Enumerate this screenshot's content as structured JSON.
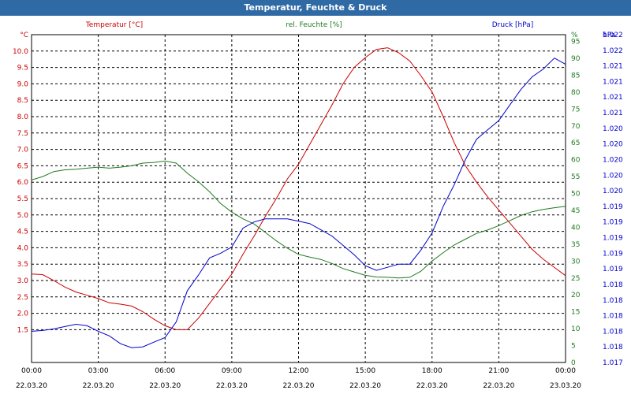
{
  "header": {
    "title": "Temperatur, Feuchte & Druck"
  },
  "colors": {
    "temperature": "#cc0000",
    "humidity": "#1f7a1f",
    "pressure": "#0000cc",
    "grid": "#000000",
    "title_bar": "#2f6aa5"
  },
  "chart_data": {
    "type": "line",
    "title": "Temperatur, Feuchte & Druck",
    "grid": true,
    "x_ticks": [
      {
        "time": "00:00",
        "date": "22.03.20"
      },
      {
        "time": "03:00",
        "date": "22.03.20"
      },
      {
        "time": "06:00",
        "date": "22.03.20"
      },
      {
        "time": "09:00",
        "date": "22.03.20"
      },
      {
        "time": "12:00",
        "date": "22.03.20"
      },
      {
        "time": "15:00",
        "date": "22.03.20"
      },
      {
        "time": "18:00",
        "date": "22.03.20"
      },
      {
        "time": "21:00",
        "date": "22.03.20"
      },
      {
        "time": "00:00",
        "date": "23.03.20"
      }
    ],
    "x_range_hours": [
      0,
      24
    ],
    "axes": {
      "temperature": {
        "unit_label": "°C",
        "legend": "Temperatur [°C]",
        "ylim": [
          0.5,
          10.5
        ],
        "ticks": [
          "1.5",
          "2.0",
          "2.5",
          "3.0",
          "3.5",
          "4.0",
          "4.5",
          "5.0",
          "5.5",
          "6.0",
          "6.5",
          "7.0",
          "7.5",
          "8.0",
          "8.5",
          "9.0",
          "9.5",
          "10.0"
        ]
      },
      "humidity": {
        "unit_label": "%",
        "legend": "rel. Feuchte [%]",
        "ylim": [
          0,
          97
        ],
        "ticks": [
          "0",
          "5",
          "10",
          "15",
          "20",
          "25",
          "30",
          "35",
          "40",
          "45",
          "50",
          "55",
          "60",
          "65",
          "70",
          "75",
          "80",
          "85",
          "90",
          "95",
          "%"
        ]
      },
      "pressure": {
        "unit_label": "hPa",
        "legend": "Druck [hPa]",
        "ylim": [
          0,
          20
        ],
        "ticks": [
          "1.017",
          "1.018",
          "1.018",
          "1.018",
          "1.018",
          "1.018",
          "1.019",
          "1.019",
          "1.019",
          "1.019",
          "1.019",
          "1.020",
          "1.020",
          "1.020",
          "1.020",
          "1.020",
          "1.021",
          "1.021",
          "1.021",
          "1.021",
          "1.022",
          "1.022"
        ],
        "note": "tick labels as printed; curve values are in tick-index units"
      }
    },
    "series": [
      {
        "name": "Temperatur [°C]",
        "axis": "temperature",
        "points": [
          [
            0,
            3.2
          ],
          [
            0.5,
            3.18
          ],
          [
            1,
            3.0
          ],
          [
            1.5,
            2.8
          ],
          [
            2,
            2.65
          ],
          [
            2.5,
            2.55
          ],
          [
            3,
            2.45
          ],
          [
            3.5,
            2.32
          ],
          [
            4,
            2.28
          ],
          [
            4.5,
            2.22
          ],
          [
            5,
            2.05
          ],
          [
            5.5,
            1.82
          ],
          [
            6,
            1.62
          ],
          [
            6.5,
            1.5
          ],
          [
            7,
            1.5
          ],
          [
            7.5,
            1.85
          ],
          [
            8,
            2.3
          ],
          [
            8.5,
            2.75
          ],
          [
            9,
            3.2
          ],
          [
            9.5,
            3.8
          ],
          [
            10,
            4.35
          ],
          [
            10.5,
            4.95
          ],
          [
            11,
            5.5
          ],
          [
            11.5,
            6.1
          ],
          [
            12,
            6.55
          ],
          [
            12.5,
            7.15
          ],
          [
            13,
            7.75
          ],
          [
            13.5,
            8.35
          ],
          [
            14,
            9.0
          ],
          [
            14.5,
            9.5
          ],
          [
            15,
            9.8
          ],
          [
            15.5,
            10.05
          ],
          [
            16,
            10.1
          ],
          [
            16.5,
            9.95
          ],
          [
            17,
            9.7
          ],
          [
            17.5,
            9.25
          ],
          [
            18,
            8.75
          ],
          [
            18.5,
            8.0
          ],
          [
            19,
            7.2
          ],
          [
            19.5,
            6.5
          ],
          [
            20,
            6.0
          ],
          [
            20.5,
            5.55
          ],
          [
            21,
            5.15
          ],
          [
            21.5,
            4.75
          ],
          [
            22,
            4.35
          ],
          [
            22.5,
            3.95
          ],
          [
            23,
            3.65
          ],
          [
            23.5,
            3.4
          ],
          [
            24,
            3.15
          ]
        ]
      },
      {
        "name": "rel. Feuchte [%]",
        "axis": "humidity",
        "points": [
          [
            0,
            54
          ],
          [
            0.5,
            55
          ],
          [
            1,
            56.5
          ],
          [
            1.5,
            57
          ],
          [
            2,
            57.2
          ],
          [
            2.5,
            57.5
          ],
          [
            3,
            57.8
          ],
          [
            3.5,
            57.5
          ],
          [
            4,
            57.8
          ],
          [
            4.5,
            58.2
          ],
          [
            5,
            59
          ],
          [
            5.5,
            59.2
          ],
          [
            6,
            59.6
          ],
          [
            6.5,
            59
          ],
          [
            7,
            56
          ],
          [
            7.5,
            53.5
          ],
          [
            8,
            50.5
          ],
          [
            8.5,
            47
          ],
          [
            9,
            44.5
          ],
          [
            9.5,
            42.5
          ],
          [
            10,
            41
          ],
          [
            10.5,
            38.5
          ],
          [
            11,
            36
          ],
          [
            11.5,
            33.8
          ],
          [
            12,
            32
          ],
          [
            12.5,
            31.2
          ],
          [
            13,
            30.5
          ],
          [
            13.5,
            29.3
          ],
          [
            14,
            27.8
          ],
          [
            14.5,
            26.8
          ],
          [
            15,
            25.8
          ],
          [
            15.5,
            25.3
          ],
          [
            16,
            25.2
          ],
          [
            16.5,
            25
          ],
          [
            17,
            25.2
          ],
          [
            17.5,
            27
          ],
          [
            18,
            30
          ],
          [
            18.5,
            32.5
          ],
          [
            19,
            34.8
          ],
          [
            19.5,
            36.5
          ],
          [
            20,
            38.2
          ],
          [
            20.5,
            39.2
          ],
          [
            21,
            40.5
          ],
          [
            21.5,
            42
          ],
          [
            22,
            43.5
          ],
          [
            22.5,
            44.6
          ],
          [
            23,
            45.3
          ],
          [
            23.5,
            45.8
          ],
          [
            24,
            46.2
          ]
        ]
      },
      {
        "name": "Druck [hPa]",
        "axis": "pressure",
        "points": [
          [
            0,
            2.0
          ],
          [
            0.5,
            2.05
          ],
          [
            1,
            2.15
          ],
          [
            1.5,
            2.3
          ],
          [
            2,
            2.45
          ],
          [
            2.5,
            2.35
          ],
          [
            3,
            2.0
          ],
          [
            3.5,
            1.7
          ],
          [
            4,
            1.2
          ],
          [
            4.5,
            0.95
          ],
          [
            5,
            1.0
          ],
          [
            5.5,
            1.3
          ],
          [
            6,
            1.6
          ],
          [
            6.5,
            2.6
          ],
          [
            7,
            4.6
          ],
          [
            7.5,
            5.6
          ],
          [
            8,
            6.7
          ],
          [
            8.5,
            7.0
          ],
          [
            9,
            7.4
          ],
          [
            9.5,
            8.6
          ],
          [
            10,
            9.0
          ],
          [
            10.5,
            9.2
          ],
          [
            11,
            9.2
          ],
          [
            11.5,
            9.2
          ],
          [
            12,
            9.05
          ],
          [
            12.5,
            8.9
          ],
          [
            13,
            8.5
          ],
          [
            13.5,
            8.1
          ],
          [
            14,
            7.5
          ],
          [
            14.5,
            6.9
          ],
          [
            15,
            6.2
          ],
          [
            15.5,
            5.9
          ],
          [
            16,
            6.1
          ],
          [
            16.5,
            6.3
          ],
          [
            17,
            6.3
          ],
          [
            17.5,
            7.2
          ],
          [
            18,
            8.3
          ],
          [
            18.5,
            10.0
          ],
          [
            19,
            11.4
          ],
          [
            19.5,
            13.0
          ],
          [
            20,
            14.3
          ],
          [
            20.5,
            14.9
          ],
          [
            21,
            15.5
          ],
          [
            21.5,
            16.5
          ],
          [
            22,
            17.5
          ],
          [
            22.5,
            18.3
          ],
          [
            23,
            18.8
          ],
          [
            23.5,
            19.5
          ],
          [
            24,
            19.1
          ]
        ]
      }
    ]
  }
}
